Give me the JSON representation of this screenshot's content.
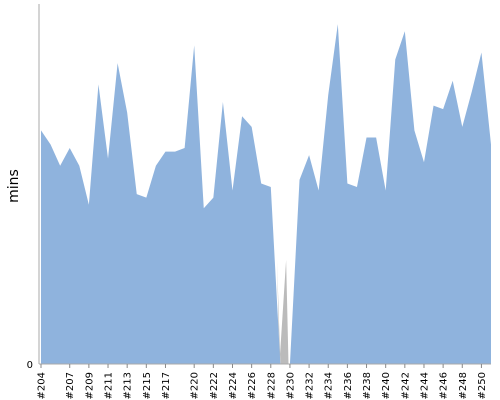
{
  "chart_data": {
    "type": "area",
    "ylabel": "mins",
    "xlabel": "",
    "title": "",
    "y_tick_labels": [
      "0"
    ],
    "ylim": [
      0,
      100
    ],
    "grid": false,
    "legend": "none",
    "x": [
      "#204",
      "#205",
      "#206",
      "#207",
      "#208",
      "#209",
      "#210",
      "#211",
      "#212",
      "#213",
      "#214",
      "#215",
      "#216",
      "#217",
      "#218",
      "#219",
      "#220",
      "#221",
      "#222",
      "#223",
      "#224",
      "#225",
      "#226",
      "#227",
      "#228",
      "#229",
      "#230",
      "#231",
      "#232",
      "#233",
      "#234",
      "#235",
      "#236",
      "#237",
      "#238",
      "#239",
      "#240",
      "#241",
      "#242",
      "#243",
      "#244",
      "#245",
      "#246",
      "#247",
      "#248",
      "#249",
      "#250",
      "#251"
    ],
    "x_tick_labels": [
      "#204",
      "#207",
      "#209",
      "#211",
      "#213",
      "#215",
      "#217",
      "#220",
      "#222",
      "#224",
      "#226",
      "#228",
      "#230",
      "#232",
      "#234",
      "#236",
      "#238",
      "#240",
      "#242",
      "#244",
      "#246",
      "#248",
      "#250"
    ],
    "series": [
      {
        "name": "",
        "values": [
          66,
          62,
          56,
          61,
          56,
          45,
          79,
          58,
          85,
          71,
          48,
          47,
          56,
          60,
          60,
          61,
          90,
          44,
          47,
          74,
          49,
          70,
          67,
          51,
          50,
          0,
          0,
          52,
          59,
          49,
          76,
          96,
          51,
          50,
          64,
          64,
          49,
          86,
          94,
          66,
          57,
          73,
          72,
          80,
          67,
          77,
          88,
          62
        ],
        "missing_index": 25
      }
    ],
    "colors": {
      "fill": "#8fb3dd",
      "missing": "#bbbbbb",
      "axis": "#aaaaaa"
    }
  }
}
